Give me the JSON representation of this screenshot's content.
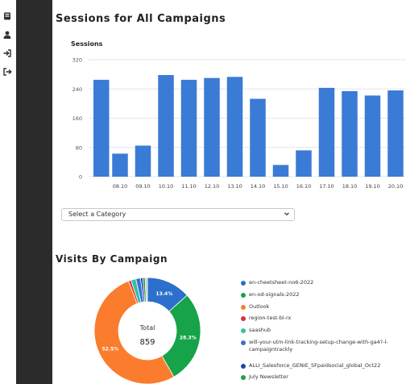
{
  "colors": {
    "sidebar_dark": "#2b2b2b",
    "bar": "#3a7bd5",
    "grid": "#e6e6e6",
    "pie": [
      "#2d6fcc",
      "#17a34a",
      "#fb7c2c",
      "#e02d3b",
      "#2ec4a0",
      "#3b6fd6",
      "#1a46a8",
      "#16a34a",
      "#c6c6c6"
    ]
  },
  "nav_icons": [
    "database-icon",
    "user-icon",
    "sign-in-icon",
    "sign-out-icon"
  ],
  "page": {
    "sessions_title": "Sessions for All Campaigns",
    "visits_title": "Visits By Campaign"
  },
  "category_select": {
    "selected": "Select a Category"
  },
  "sessions_chart_data": {
    "type": "bar",
    "title": "Sessions",
    "categories": [
      "08.10",
      "09.10",
      "10.10",
      "11.10",
      "12.10",
      "13.10",
      "14.10",
      "15.10",
      "16.10",
      "17.10",
      "18.10",
      "19.10",
      "20.10"
    ],
    "values": [
      63,
      85,
      278,
      265,
      270,
      273,
      213,
      32,
      72,
      243,
      234,
      222,
      236
    ],
    "partial_first_value": 265,
    "y_ticks": [
      0,
      80,
      160,
      240,
      320
    ],
    "ylim": [
      0,
      320
    ],
    "grid": true
  },
  "visits_chart_data": {
    "type": "pie",
    "center_label": "Total",
    "center_value": "859",
    "slices": [
      {
        "name": "en-cheetsheet-no6-2022",
        "value": 13.4,
        "label": "13.4%",
        "color": "#2d6fcc"
      },
      {
        "name": "en-od-signals-2022",
        "value": 28.3,
        "label": "28.3%",
        "color": "#17a34a"
      },
      {
        "name": "Outlook",
        "value": 52.5,
        "label": "52.5%",
        "color": "#fb7c2c"
      },
      {
        "name": "region-test-bl-rx",
        "value": 0.8,
        "label": "",
        "color": "#e02d3b"
      },
      {
        "name": "saashub",
        "value": 1.5,
        "label": "",
        "color": "#2ec4a0"
      },
      {
        "name": "will-your-utm-link-tracking-setup-change-with-ga4?-l-campaigntrackly",
        "value": 1.4,
        "label": "",
        "color": "#3b6fd6"
      },
      {
        "name": "ALLI_Salesforce_GENIE_SFpaidsocial_global_Oct22",
        "value": 0.7,
        "label": "",
        "color": "#1a46a8"
      },
      {
        "name": "July Newsletter",
        "value": 0.7,
        "label": "",
        "color": "#16a34a"
      },
      {
        "name": "",
        "value": 0.7,
        "label": "",
        "color": "#c6c6c6"
      }
    ],
    "legend": [
      {
        "text": "en-cheetsheet-no6-2022",
        "color": "#2d6fcc"
      },
      {
        "text": "en-od-signals-2022",
        "color": "#17a34a"
      },
      {
        "text": "Outlook",
        "color": "#fb7c2c"
      },
      {
        "text": "region-test-bl-rx",
        "color": "#e02d3b"
      },
      {
        "text": "saashub",
        "color": "#2ec4a0"
      },
      {
        "text": "will-your-utm-link-tracking-setup-change-with-ga4?-l-",
        "text2": "campaigntrackly",
        "color": "#3b6fd6"
      },
      {
        "text": "ALLI_Salesforce_GENIE_SFpaidsocial_global_Oct22",
        "color": "#1a46a8"
      },
      {
        "text": "July Newsletter",
        "color": "#16a34a"
      }
    ]
  }
}
